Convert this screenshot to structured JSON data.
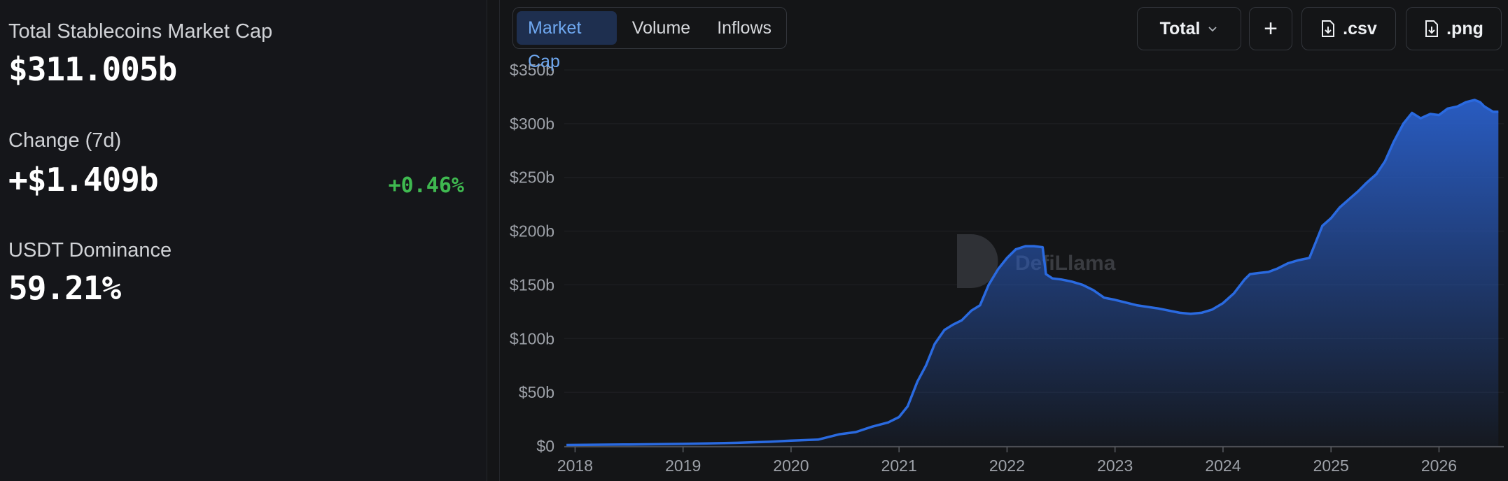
{
  "stats": {
    "market_cap_label": "Total Stablecoins Market Cap",
    "market_cap_value": "$311.005b",
    "change_label": "Change (7d)",
    "change_value": "+$1.409b",
    "change_pct": "+0.46%",
    "dominance_label": "USDT Dominance",
    "dominance_value": "59.21%"
  },
  "tabs": [
    {
      "label": "Market Cap",
      "active": true
    },
    {
      "label": "Volume",
      "active": false
    },
    {
      "label": "Inflows",
      "active": false
    }
  ],
  "toolbar": {
    "total_label": "Total",
    "add_label": "+",
    "csv_label": ".csv",
    "png_label": ".png"
  },
  "watermark": "DefiLlama",
  "colors": {
    "line": "#2a6ae0",
    "positive": "#3fb950"
  },
  "chart_data": {
    "type": "area",
    "y_ticks": [
      "$0",
      "$50b",
      "$100b",
      "$150b",
      "$200b",
      "$250b",
      "$300b",
      "$350b"
    ],
    "x_ticks": [
      "2018",
      "2019",
      "2020",
      "2021",
      "2022",
      "2023",
      "2024",
      "2025",
      "2026"
    ],
    "xlim": [
      2017.9,
      2026.6
    ],
    "ylim": [
      0,
      350
    ],
    "grid": true,
    "series": [
      {
        "x": [
          2017.92,
          2018.5,
          2019.0,
          2019.5,
          2019.8,
          2020.0,
          2020.25,
          2020.45,
          2020.6,
          2020.75,
          2020.9,
          2021.0,
          2021.08,
          2021.17,
          2021.25,
          2021.33,
          2021.42,
          2021.5,
          2021.58,
          2021.67,
          2021.75,
          2021.83,
          2021.92,
          2022.0,
          2022.08,
          2022.17,
          2022.25,
          2022.33,
          2022.36,
          2022.42,
          2022.5,
          2022.6,
          2022.7,
          2022.8,
          2022.9,
          2023.0,
          2023.2,
          2023.4,
          2023.6,
          2023.7,
          2023.8,
          2023.9,
          2024.0,
          2024.1,
          2024.2,
          2024.25,
          2024.33,
          2024.42,
          2024.5,
          2024.6,
          2024.7,
          2024.8,
          2024.92,
          2025.0,
          2025.08,
          2025.17,
          2025.25,
          2025.33,
          2025.42,
          2025.5,
          2025.58,
          2025.67,
          2025.75,
          2025.83,
          2025.92,
          2026.0,
          2026.08,
          2026.17,
          2026.25,
          2026.33,
          2026.38,
          2026.42,
          2026.5,
          2026.55
        ],
        "y": [
          1,
          1.5,
          2,
          3,
          4,
          5,
          6,
          11,
          13,
          18,
          22,
          27,
          37,
          60,
          75,
          95,
          108,
          113,
          117,
          126,
          131,
          150,
          165,
          175,
          183,
          186,
          186,
          185,
          160,
          156,
          155,
          153,
          150,
          145,
          138,
          136,
          131,
          128,
          124,
          123,
          124,
          127,
          133,
          142,
          155,
          160,
          161,
          162,
          165,
          170,
          173,
          175,
          205,
          212,
          222,
          230,
          237,
          245,
          253,
          265,
          283,
          300,
          310,
          305,
          309,
          308,
          314,
          316,
          320,
          322,
          320,
          316,
          311,
          311
        ]
      }
    ]
  }
}
